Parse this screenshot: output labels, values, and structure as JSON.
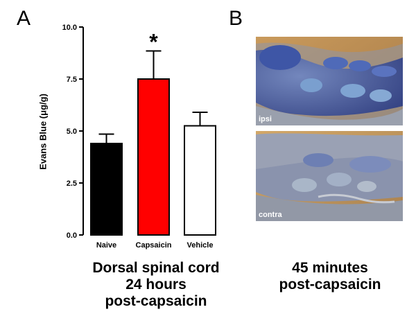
{
  "panels": {
    "a_letter": "A",
    "b_letter": "B"
  },
  "chart_data": {
    "type": "bar",
    "categories": [
      "Naive",
      "Capsaicin",
      "Vehicle"
    ],
    "values": [
      4.4,
      7.5,
      5.25
    ],
    "errors": [
      0.45,
      1.35,
      0.65
    ],
    "bar_colors": [
      "#000000",
      "#ff0000",
      "#ffffff"
    ],
    "ylabel": "Evans Blue (μg/g)",
    "ylim": [
      0,
      10
    ],
    "yticks": [
      0.0,
      2.5,
      5.0,
      7.5,
      10.0
    ],
    "ytick_labels": [
      "0.0",
      "2.5",
      "5.0",
      "7.5",
      "10.0"
    ],
    "significance": [
      {
        "category": "Capsaicin",
        "marker": "*"
      }
    ],
    "grid": false,
    "legend": false
  },
  "captions": {
    "left": [
      "Dorsal spinal cord",
      "24 hours",
      "post-capsaicin"
    ],
    "right": [
      "45 minutes",
      "post-capsaicin"
    ]
  },
  "photos": {
    "top_label": "ipsi",
    "bottom_label": "contra"
  }
}
